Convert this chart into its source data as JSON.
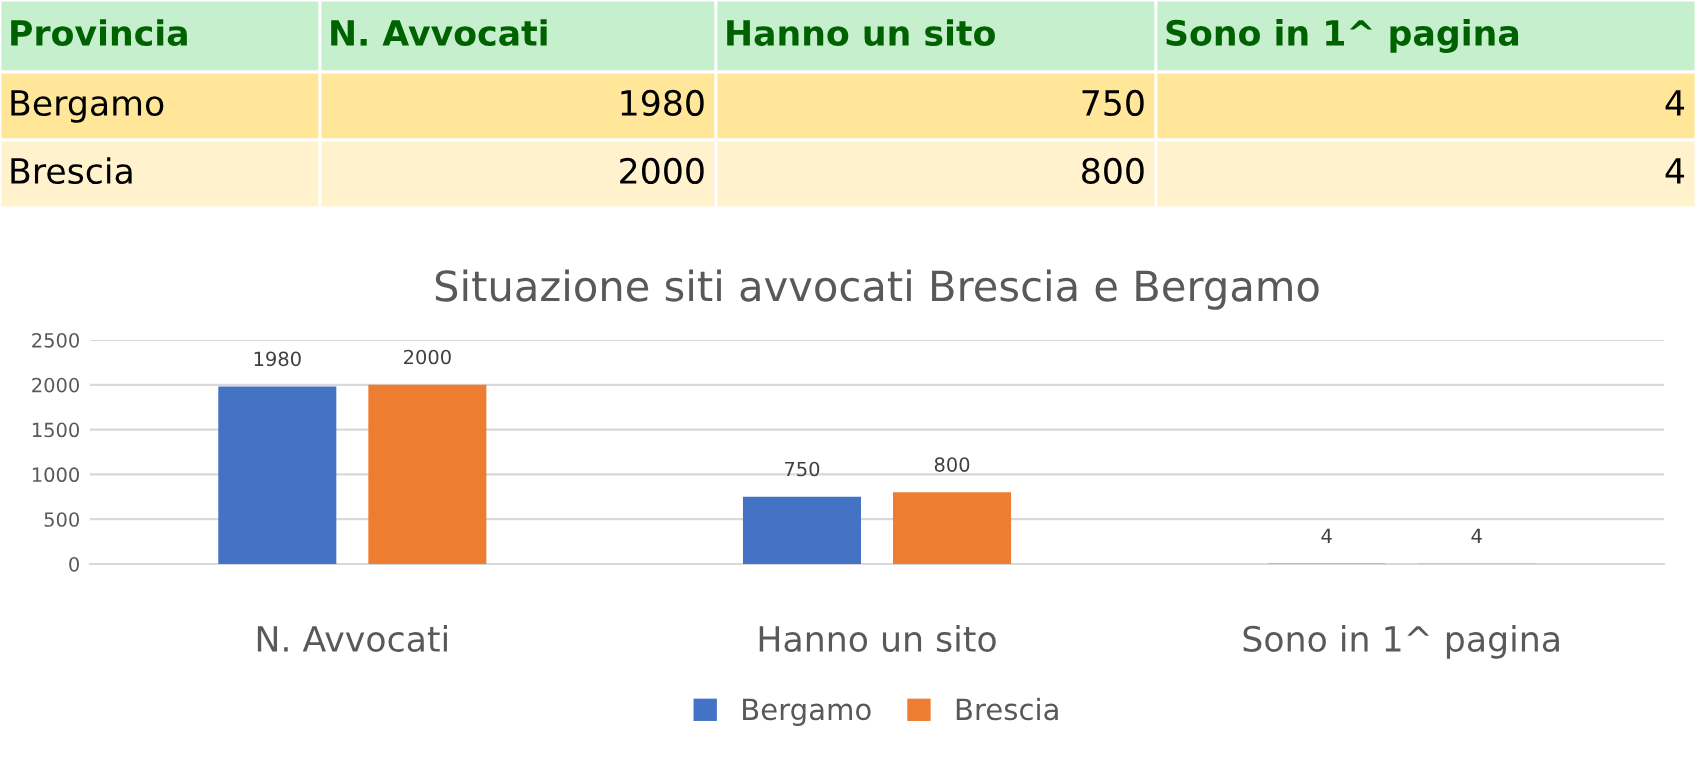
{
  "chart_data": {
    "type": "bar",
    "title": "Situazione siti avvocati Brescia e Bergamo",
    "categories": [
      "N. Avvocati",
      "Hanno un sito",
      "Sono in 1^ pagina"
    ],
    "series": [
      {
        "name": "Bergamo",
        "color": "#4472c4",
        "values": [
          1980,
          750,
          4
        ]
      },
      {
        "name": "Brescia",
        "color": "#ed7d31",
        "values": [
          2000,
          800,
          4
        ]
      }
    ],
    "annotations": [
      "Provincia",
      "1980",
      "750",
      "4",
      "2000",
      "800",
      "4"
    ],
    "ylim": [
      0,
      2500
    ],
    "yticks": [
      0,
      500,
      1000,
      1500,
      2000,
      2500
    ],
    "grid": "y",
    "legend": "bottom",
    "data_labels": true
  }
}
